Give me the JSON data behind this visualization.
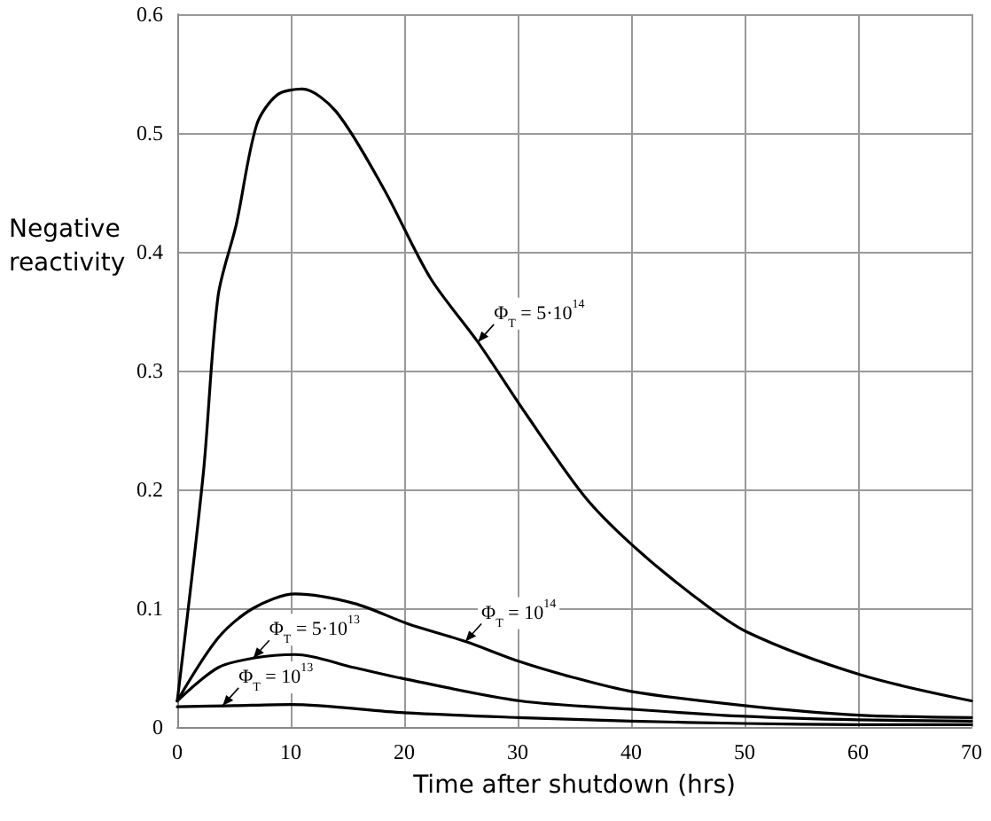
{
  "chart_data": {
    "type": "line",
    "xlabel": "Time after shutdown (hrs)",
    "ylabel": "Negative reactivity",
    "xlim": [
      0,
      70
    ],
    "xticks": [
      0,
      10,
      20,
      30,
      40,
      50,
      60,
      70
    ],
    "ylim": [
      0,
      0.6
    ],
    "yticks": [
      0,
      0.1,
      0.2,
      0.3,
      0.4,
      0.5,
      0.6
    ],
    "grid": true,
    "marker": "none",
    "line_style": "solid",
    "series": [
      {
        "color": "#000000",
        "x": [
          0,
          2.3,
          3.6,
          5.2,
          7,
          8.8,
          11,
          14,
          18.2,
          22.3,
          26.5,
          30.7,
          35.9,
          40,
          45.3,
          50.2,
          60.2,
          70
        ],
        "values": [
          0.022,
          0.214,
          0.363,
          0.423,
          0.507,
          0.532,
          0.537,
          0.518,
          0.453,
          0.378,
          0.324,
          0.264,
          0.194,
          0.154,
          0.112,
          0.08,
          0.044,
          0.022
        ]
      },
      {
        "color": "#000000",
        "x": [
          0,
          3.6,
          6.7,
          10.4,
          15.6,
          20.3,
          25.4,
          30.2,
          34.8,
          40,
          50,
          60,
          70
        ],
        "values": [
          0.022,
          0.075,
          0.1,
          0.112,
          0.104,
          0.087,
          0.072,
          0.055,
          0.042,
          0.03,
          0.018,
          0.01,
          0.008
        ]
      },
      {
        "color": "#000000",
        "x": [
          0,
          3.6,
          6.7,
          10.4,
          15.6,
          20.3,
          30.2,
          40,
          50,
          60,
          70
        ],
        "values": [
          0.022,
          0.05,
          0.058,
          0.061,
          0.05,
          0.04,
          0.022,
          0.015,
          0.009,
          0.006,
          0.005
        ]
      },
      {
        "color": "#000000",
        "x": [
          0,
          5,
          10,
          20,
          30,
          40,
          50,
          60,
          70
        ],
        "values": [
          0.017,
          0.018,
          0.019,
          0.012,
          0.008,
          0.005,
          0.003,
          0.002,
          0.002
        ]
      }
    ],
    "annotations": [
      {
        "text": "Φ$_{T}$ = 5·10$^{14}$",
        "x": 26.5,
        "y": 0.324
      },
      {
        "text": "Φ$_{T}$ = 10$^{14}$",
        "x": 25.4,
        "y": 0.072
      },
      {
        "text": "Φ$_{T}$ = 5·10$^{13}$",
        "x": 6.7,
        "y": 0.058
      },
      {
        "text": "Φ$_{T}$ = 10$^{13}$",
        "x": 4,
        "y": 0.018
      }
    ]
  }
}
